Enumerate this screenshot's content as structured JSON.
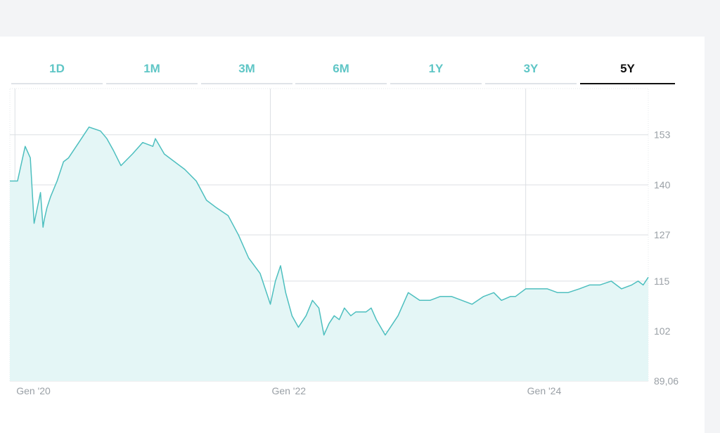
{
  "tabs": [
    {
      "label": "1D",
      "active": false
    },
    {
      "label": "1M",
      "active": false
    },
    {
      "label": "3M",
      "active": false
    },
    {
      "label": "6M",
      "active": false
    },
    {
      "label": "1Y",
      "active": false
    },
    {
      "label": "3Y",
      "active": false
    },
    {
      "label": "5Y",
      "active": true
    }
  ],
  "colors": {
    "accent": "#5fc6c6",
    "line": "#4dbfbf",
    "area": "#e4f6f6",
    "active_tab": "#111111",
    "grid": "#dcdfe3"
  },
  "chart_data": {
    "type": "area",
    "ylim": [
      89.06,
      165
    ],
    "y_ticks": [
      "153",
      "140",
      "127",
      "115",
      "102",
      "89,06"
    ],
    "y_tick_values": [
      153,
      140,
      127,
      115,
      102,
      89.06
    ],
    "x_ticks": [
      "Gen '20",
      "Gen '22",
      "Gen '24"
    ],
    "x_tick_values": [
      2020.0,
      2022.0,
      2024.0
    ],
    "xlim": [
      2019.96,
      2024.96
    ],
    "grid": true,
    "series": [
      {
        "x": [
          2019.96,
          2020.02,
          2020.08,
          2020.12,
          2020.15,
          2020.2,
          2020.22,
          2020.23,
          2020.25,
          2020.28,
          2020.33,
          2020.38,
          2020.42,
          2020.5,
          2020.58,
          2020.67,
          2020.72,
          2020.77,
          2020.83,
          2020.92,
          2021.0,
          2021.08,
          2021.1,
          2021.17,
          2021.25,
          2021.33,
          2021.42,
          2021.5,
          2021.58,
          2021.67,
          2021.75,
          2021.83,
          2021.92,
          2022.0,
          2022.04,
          2022.08,
          2022.12,
          2022.17,
          2022.22,
          2022.28,
          2022.33,
          2022.38,
          2022.42,
          2022.46,
          2022.5,
          2022.54,
          2022.58,
          2022.63,
          2022.67,
          2022.75,
          2022.79,
          2022.83,
          2022.9,
          2022.96,
          2023.0,
          2023.08,
          2023.17,
          2023.25,
          2023.33,
          2023.42,
          2023.5,
          2023.58,
          2023.67,
          2023.75,
          2023.81,
          2023.88,
          2023.92,
          2023.96,
          2024.0,
          2024.08,
          2024.17,
          2024.25,
          2024.33,
          2024.42,
          2024.5,
          2024.58,
          2024.67,
          2024.75,
          2024.83,
          2024.88,
          2024.92,
          2024.96
        ],
        "y": [
          141,
          141,
          150,
          147,
          130,
          138,
          129,
          131,
          134,
          137,
          141,
          146,
          147,
          151,
          155,
          154,
          152,
          149,
          145,
          148,
          151,
          150,
          152,
          148,
          146,
          144,
          141,
          136,
          134,
          132,
          127,
          121,
          117,
          109,
          115,
          119,
          112,
          106,
          103,
          106,
          110,
          108,
          101,
          104,
          106,
          105,
          108,
          106,
          107,
          107,
          108,
          105,
          101,
          104,
          106,
          112,
          110,
          110,
          111,
          111,
          110,
          109,
          111,
          112,
          110,
          111,
          111,
          112,
          113,
          113,
          113,
          112,
          112,
          113,
          114,
          114,
          115,
          113,
          114,
          115,
          114,
          116
        ]
      }
    ]
  }
}
